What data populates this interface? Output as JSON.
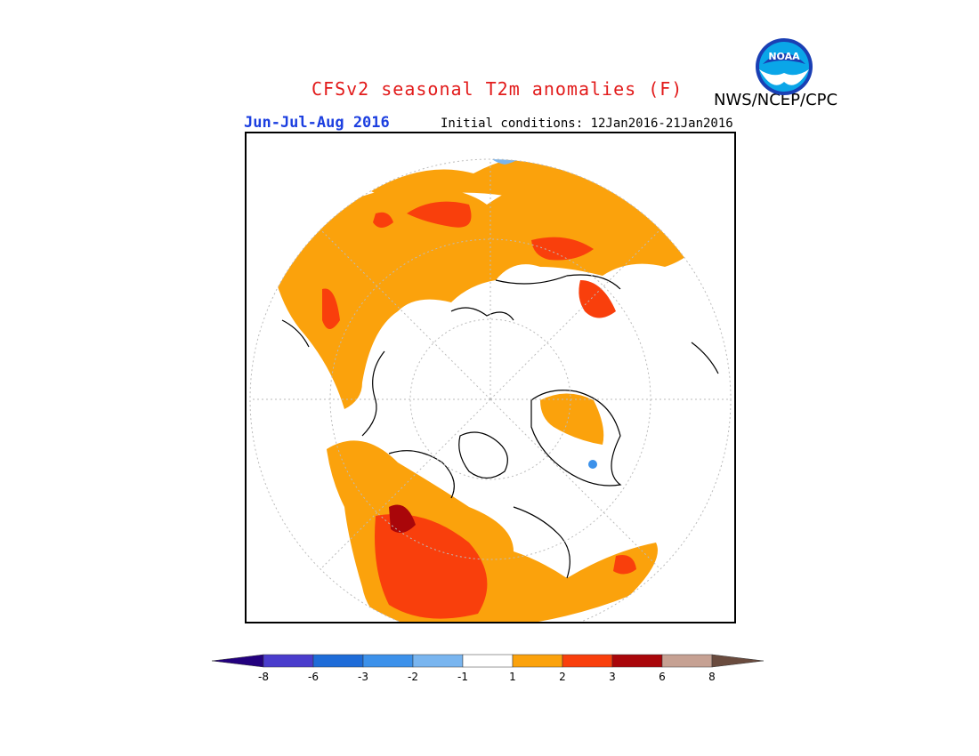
{
  "header": {
    "title": "CFSv2 seasonal T2m anomalies (F)",
    "organization": "NWS/NCEP/CPC",
    "period": "Jun-Jul-Aug 2016",
    "initial_conditions": "Initial conditions: 12Jan2016-21Jan2016",
    "logo_text": "NOAA"
  },
  "legend": {
    "ticks": [
      "-8",
      "-6",
      "-3",
      "-2",
      "-1",
      "1",
      "2",
      "3",
      "6",
      "8"
    ],
    "colors": {
      "lt_-8": "#23007e",
      "-8_-6": "#4a3ccc",
      "-6_-3": "#1e6cd8",
      "-3_-2": "#3c91ea",
      "-2_-1": "#79b5ef",
      "-1_1": "#ffffff",
      "1_2": "#fba20c",
      "2_3": "#f93f0c",
      "3_6": "#a9060a",
      "6_8": "#c6a193",
      "gt_8": "#6a4b3e"
    }
  }
}
